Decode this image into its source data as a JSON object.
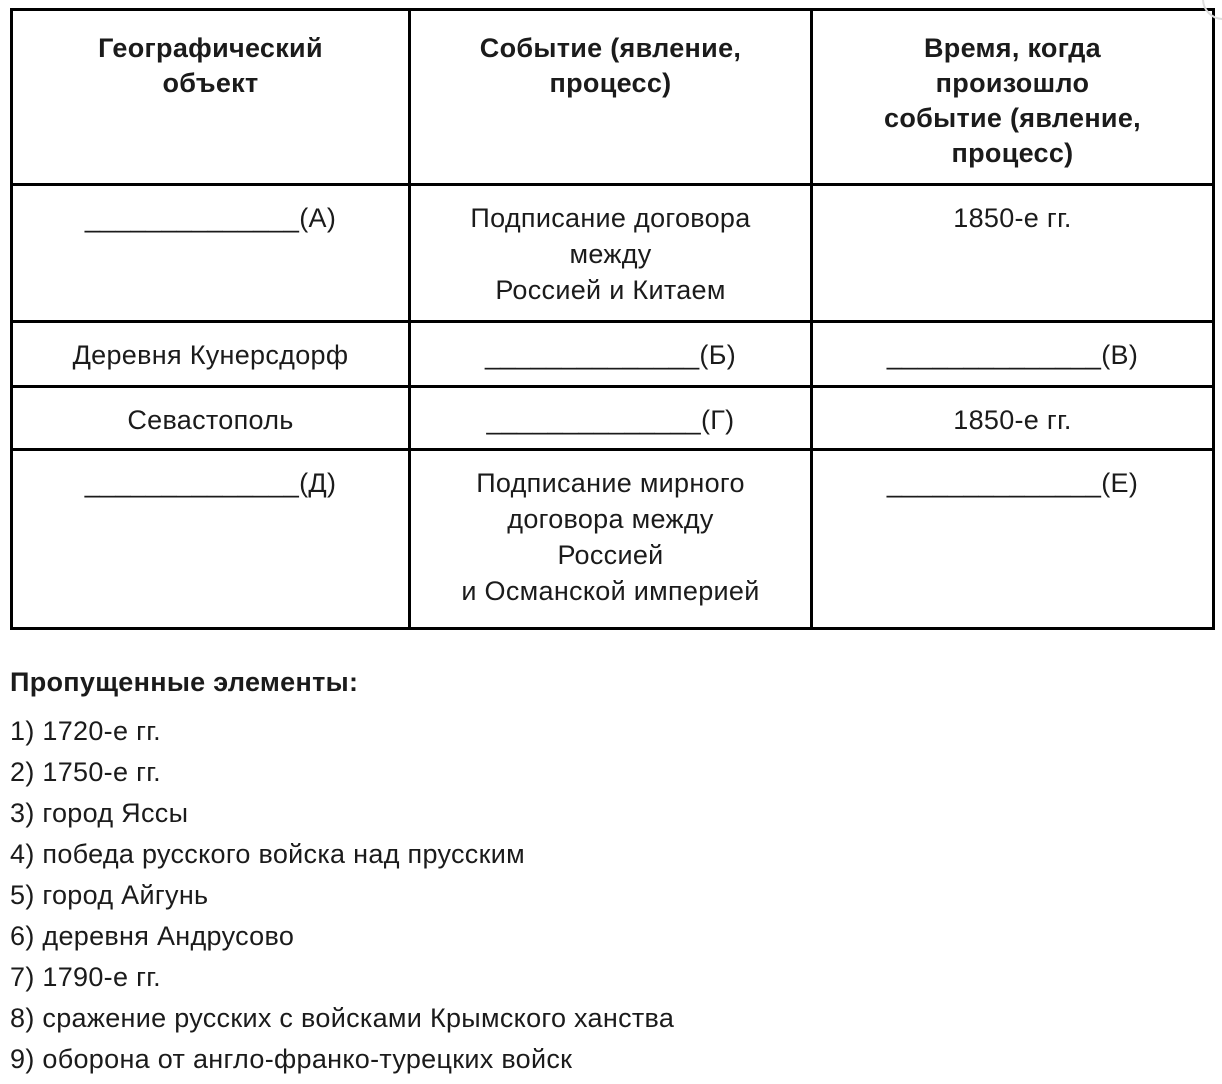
{
  "table": {
    "headers": [
      "Географический\nобъект",
      "Событие (явление,\nпроцесс)",
      "Время, когда\nпроизошло\nсобытие (явление,\nпроцесс)"
    ],
    "rows": [
      [
        "______________(А)",
        "Подписание договора\nмежду\nРоссией и Китаем",
        "1850-е гг."
      ],
      [
        "Деревня Кунерсдорф",
        "______________(Б)",
        "______________(В)"
      ],
      [
        "Севастополь",
        "______________(Г)",
        "1850-е гг."
      ],
      [
        "______________(Д)",
        "Подписание мирного\nдоговора между\nРоссией\nи Османской империей",
        "______________(Е)"
      ]
    ]
  },
  "missing_elements": {
    "title": "Пропущенные элементы:",
    "items": [
      "1) 1720-е гг.",
      "2) 1750-е гг.",
      "3) город Яссы",
      "4) победа русского войска над прусским",
      "5) город Айгунь",
      "6) деревня Андрусово",
      "7) 1790-е гг.",
      "8) сражение русских с войсками Крымского ханства",
      "9) оборона от англо-франко-турецких войск"
    ]
  },
  "colors": {
    "text": "#1b1b1b",
    "border": "#000000",
    "background": "#ffffff"
  }
}
